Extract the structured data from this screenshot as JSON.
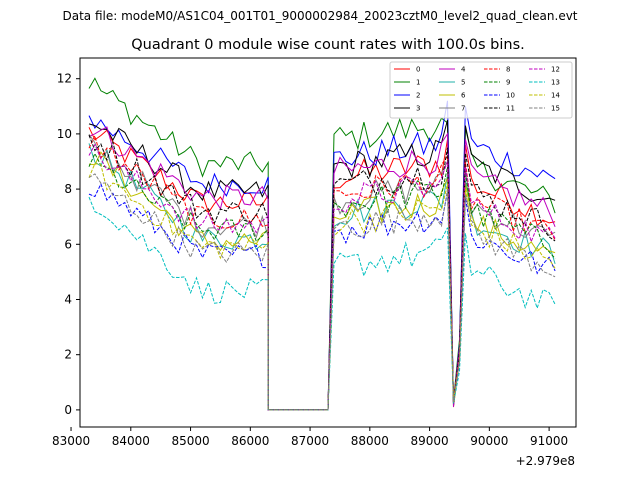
{
  "figure": {
    "suptitle": "Data file: modeM0/AS1C04_001T01_9000002984_20023cztM0_level2_quad_clean.evt"
  },
  "chart_data": {
    "type": "line",
    "title": "Quadrant 0 module wise count rates with 100.0s bins.",
    "xlabel": "",
    "ylabel": "",
    "x_offset_label": "+2.979e8",
    "xlim": [
      83150,
      91450
    ],
    "ylim": [
      -0.62,
      12.75
    ],
    "xticks": [
      83000,
      84000,
      85000,
      86000,
      87000,
      88000,
      89000,
      90000,
      91000
    ],
    "xtick_labels": [
      "83000",
      "84000",
      "85000",
      "86000",
      "87000",
      "88000",
      "89000",
      "90000",
      "91000"
    ],
    "yticks": [
      0,
      2,
      4,
      6,
      8,
      10,
      12
    ],
    "ytick_labels": [
      "0",
      "2",
      "4",
      "6",
      "8",
      "10",
      "12"
    ],
    "grid": false,
    "legend_position": "top-right",
    "legend_columns": 4,
    "segments": [
      {
        "start": 83300,
        "step": 100,
        "count": 31
      },
      {
        "start": 86300,
        "step": 100,
        "count": 11
      },
      {
        "start": 87400,
        "step": 100,
        "count": 20
      },
      {
        "start": 89400,
        "step": 100,
        "count": 18
      }
    ],
    "series": [
      {
        "name": "0",
        "color": "#ff0000",
        "dash": "solid",
        "level": 8.8,
        "first": 10.1
      },
      {
        "name": "1",
        "color": "#008000",
        "dash": "solid",
        "level": 10.2,
        "first": 11.9,
        "peak": 10.4
      },
      {
        "name": "2",
        "color": "#0000ff",
        "dash": "solid",
        "level": 9.5,
        "first": 10.6,
        "peak": 11.2
      },
      {
        "name": "3",
        "color": "#000000",
        "dash": "solid",
        "level": 9.2,
        "first": 10.5,
        "peak": 10.5
      },
      {
        "name": "4",
        "color": "#bf00bf",
        "dash": "solid",
        "level": 9.0,
        "first": 10.3
      },
      {
        "name": "5",
        "color": "#20b2aa",
        "dash": "solid",
        "level": 7.5,
        "first": 9.5
      },
      {
        "name": "6",
        "color": "#bfbf00",
        "dash": "solid",
        "level": 7.4,
        "first": 9.3
      },
      {
        "name": "7",
        "color": "#808080",
        "dash": "solid",
        "level": 8.0,
        "first": 9.6
      },
      {
        "name": "8",
        "color": "#ff0000",
        "dash": "dashed",
        "level": 8.2,
        "first": 9.8
      },
      {
        "name": "9",
        "color": "#008000",
        "dash": "dashed",
        "level": 7.8,
        "first": 9.0
      },
      {
        "name": "10",
        "color": "#0000ff",
        "dash": "dashed",
        "level": 6.9,
        "first": 8.2
      },
      {
        "name": "11",
        "color": "#000000",
        "dash": "dashed",
        "level": 8.5,
        "first": 9.9
      },
      {
        "name": "12",
        "color": "#bf00bf",
        "dash": "dashed",
        "level": 8.0,
        "first": 9.4
      },
      {
        "name": "13",
        "color": "#00bfbf",
        "dash": "dashed",
        "level": 5.6,
        "first": 7.8
      },
      {
        "name": "14",
        "color": "#bfbf00",
        "dash": "dashed",
        "level": 7.2,
        "first": 8.8
      },
      {
        "name": "15",
        "color": "#808080",
        "dash": "dashed",
        "level": 7.0,
        "first": 8.4
      }
    ]
  }
}
